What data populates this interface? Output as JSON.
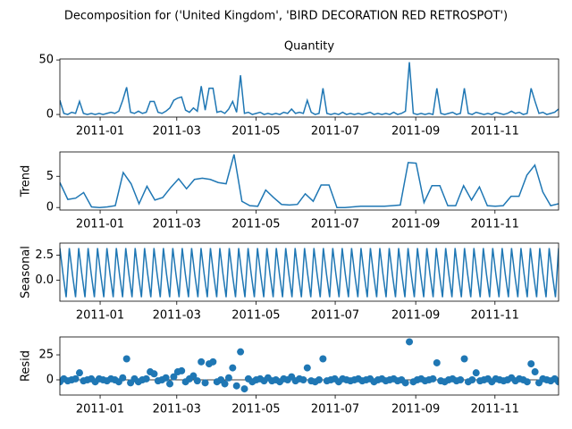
{
  "figure_title": "Decomposition for ('United Kingdom', 'BIRD DECORATION RED RETROSPOT')",
  "chart_data": [
    {
      "type": "line",
      "title": "Quantity",
      "color": "#1f77b4",
      "xlim": [
        "2010-12-01",
        "2011-12-20"
      ],
      "xticks": [
        "2011-01",
        "2011-03",
        "2011-05",
        "2011-07",
        "2011-09",
        "2011-11"
      ],
      "ylim": [
        -2.4,
        50.9
      ],
      "yticks": [
        0,
        50
      ],
      "values": [
        13,
        1,
        0,
        2,
        1,
        12,
        1,
        0,
        1,
        0,
        1,
        0,
        1,
        2,
        1,
        3,
        13,
        25,
        2,
        1,
        3,
        1,
        2,
        12,
        12,
        2,
        1,
        3,
        6,
        13,
        15,
        16,
        4,
        2,
        6,
        3,
        26,
        4,
        24,
        24,
        2,
        3,
        1,
        5,
        12,
        2,
        36,
        1,
        2,
        0,
        1,
        2,
        0,
        1,
        0,
        1,
        0,
        2,
        1,
        5,
        1,
        2,
        1,
        13,
        2,
        0,
        1,
        24,
        1,
        0,
        1,
        0,
        2,
        0,
        1,
        0,
        1,
        0,
        1,
        2,
        0,
        1,
        0,
        1,
        0,
        2,
        0,
        1,
        3,
        48,
        1,
        0,
        1,
        0,
        1,
        0,
        24,
        1,
        0,
        1,
        2,
        0,
        1,
        24,
        1,
        0,
        2,
        1,
        0,
        1,
        0,
        2,
        1,
        0,
        1,
        3,
        1,
        2,
        0,
        1,
        24,
        12,
        1,
        2,
        0,
        1,
        2,
        5
      ]
    },
    {
      "type": "line",
      "ylabel": "Trend",
      "color": "#1f77b4",
      "xlim": [
        "2010-12-01",
        "2011-12-20"
      ],
      "xticks": [
        "2011-01",
        "2011-03",
        "2011-05",
        "2011-07",
        "2011-09",
        "2011-11"
      ],
      "ylim": [
        -0.4,
        8.9
      ],
      "yticks": [
        0,
        5
      ],
      "values": [
        4.0,
        1.3,
        1.5,
        2.4,
        0.1,
        0.0,
        0.1,
        0.3,
        5.6,
        3.8,
        0.6,
        3.4,
        1.2,
        1.6,
        3.2,
        4.6,
        3.0,
        4.5,
        4.7,
        4.5,
        4.0,
        3.8,
        8.5,
        1.0,
        0.3,
        0.2,
        2.8,
        1.6,
        0.5,
        0.4,
        0.5,
        2.2,
        1.0,
        3.6,
        3.6,
        0.0,
        0.0,
        0.1,
        0.2,
        0.2,
        0.2,
        0.2,
        0.3,
        0.4,
        7.2,
        7.1,
        0.8,
        3.5,
        3.5,
        0.3,
        0.3,
        3.5,
        1.2,
        3.3,
        0.3,
        0.2,
        0.3,
        1.8,
        1.8,
        5.2,
        6.8,
        2.5,
        0.3,
        0.6
      ]
    },
    {
      "type": "line",
      "ylabel": "Seasonal",
      "color": "#1f77b4",
      "xlim": [
        "2010-12-01",
        "2011-12-20"
      ],
      "xticks": [
        "2011-01",
        "2011-03",
        "2011-05",
        "2011-07",
        "2011-09",
        "2011-11"
      ],
      "ylim": [
        -2.1,
        3.7
      ],
      "yticks": [
        {
          "value": 0,
          "label": "0.0"
        },
        2.5
      ],
      "values": [
        3.2,
        0.6,
        -1.7,
        3.2,
        0.6,
        -1.7,
        3.2,
        0.6,
        -1.7,
        3.2,
        0.6,
        -1.7,
        3.2,
        0.6,
        -1.7,
        3.2,
        0.6,
        -1.7,
        3.2,
        0.6,
        -1.7,
        3.2,
        0.6,
        -1.7,
        3.2,
        0.6,
        -1.7,
        3.2,
        0.6,
        -1.7,
        3.2,
        0.6,
        -1.7,
        3.2,
        0.6,
        -1.7,
        3.2,
        0.6,
        -1.7,
        3.2,
        0.6,
        -1.7,
        3.2,
        0.6,
        -1.7,
        3.2,
        0.6,
        -1.7,
        3.2,
        0.6,
        -1.7,
        3.2,
        0.6,
        -1.7,
        3.2,
        0.6,
        -1.7,
        3.2,
        0.6,
        -1.7,
        3.2,
        0.6,
        -1.7,
        3.2,
        0.6,
        -1.7,
        3.2,
        0.6,
        -1.7,
        3.2,
        0.6,
        -1.7,
        3.2,
        0.6,
        -1.7,
        3.2,
        0.6,
        -1.7,
        3.2,
        0.6,
        -1.7,
        3.2,
        0.6,
        -1.7,
        3.2,
        0.6,
        -1.7,
        3.2,
        0.6,
        -1.7,
        3.2,
        0.6,
        -1.7,
        3.2,
        0.6,
        -1.7,
        3.2,
        0.6,
        -1.7,
        3.2,
        0.6,
        -1.7,
        3.2,
        0.6,
        -1.7,
        3.2,
        0.6,
        -1.7,
        3.2,
        0.6,
        -1.7,
        3.2,
        0.6,
        -1.7,
        3.2,
        0.6,
        -1.7,
        3.2,
        0.6,
        -1.7,
        3.2,
        0.6,
        -1.7,
        3.2,
        0.6,
        -1.7,
        3.2,
        0.6,
        -1.7,
        3.2,
        0.6,
        -1.7,
        3.2,
        0.6,
        -1.7,
        3.2,
        0.6,
        -1.7,
        3.2,
        0.6,
        -1.7,
        3.2,
        0.6,
        -1.7,
        3.2,
        0.6,
        -1.7,
        3.2,
        0.6,
        -1.7,
        3.2,
        0.6,
        -1.7,
        3.2,
        0.6,
        -1.7,
        3.2,
        0.6,
        -1.7,
        3.2
      ]
    },
    {
      "type": "scatter",
      "ylabel": "Resid",
      "color": "#1f77b4",
      "xlim": [
        "2010-12-01",
        "2011-12-20"
      ],
      "xticks": [
        "2011-01",
        "2011-03",
        "2011-05",
        "2011-07",
        "2011-09",
        "2011-11"
      ],
      "ylim": [
        -15.2,
        42.9
      ],
      "yticks": [
        0,
        25
      ],
      "values": [
        -2,
        1,
        -1,
        0,
        1,
        7,
        -1,
        0,
        1,
        -2,
        1,
        0,
        -1,
        1,
        0,
        -2,
        2,
        21,
        -3,
        1,
        -2,
        0,
        1,
        8,
        6,
        -1,
        0,
        2,
        -4,
        3,
        8,
        9,
        -2,
        1,
        4,
        -1,
        18,
        -3,
        16,
        18,
        -2,
        0,
        -4,
        2,
        12,
        -6,
        28,
        -9,
        1,
        -2,
        0,
        1,
        -1,
        2,
        -1,
        0,
        -2,
        1,
        0,
        3,
        -1,
        1,
        0,
        12,
        -1,
        -2,
        0,
        21,
        -1,
        0,
        1,
        -2,
        1,
        0,
        -1,
        0,
        1,
        -1,
        0,
        1,
        -2,
        0,
        1,
        -1,
        0,
        1,
        -1,
        0,
        -3,
        38,
        -2,
        0,
        1,
        -1,
        0,
        1,
        17,
        -1,
        -2,
        0,
        1,
        -1,
        0,
        21,
        -2,
        0,
        7,
        -1,
        0,
        1,
        -2,
        1,
        0,
        -1,
        0,
        2,
        -1,
        1,
        0,
        -2,
        16,
        8,
        -3,
        1,
        0,
        -1,
        1,
        -2
      ]
    }
  ]
}
